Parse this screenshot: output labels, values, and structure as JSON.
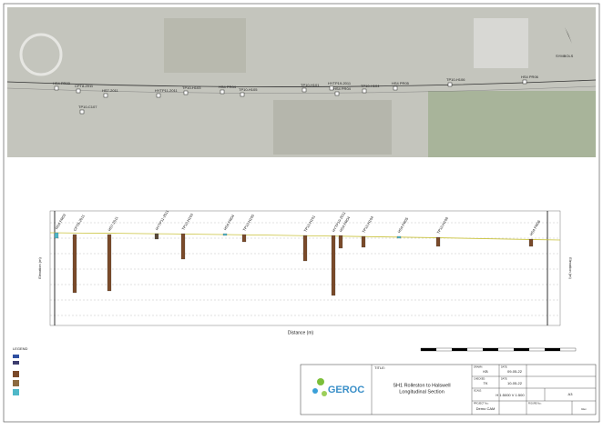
{
  "map": {
    "symbols_label": "SYMBOLS",
    "boreholes": [
      "HS4 PR03",
      "CPT8-2011",
      "HS7-2011",
      "TP10-C107",
      "HYTP11-2011",
      "TP10-H103",
      "HS4 PR04",
      "TP10-H105",
      "TP10-H101",
      "HYTP19-2011",
      "HS4 PR04",
      "TP10-H104",
      "HS4 PR05",
      "TP10-H106",
      "HS4 PR06"
    ]
  },
  "section": {
    "boreholes": [
      "HS4 PR03",
      "CPT8-2011",
      "HS7-2011",
      "HYTP11-2011",
      "TP10-H103",
      "HS4 PR04",
      "TP10-H105",
      "TP10-H101",
      "HYTP19-2011",
      "HS4 PR04",
      "TP10-H104",
      "HS4 PR05",
      "TP10-H106",
      "HS4 PR06"
    ],
    "x_axis_label": "Distance (m)",
    "y_axis_label": "Elevation (m)",
    "y2_axis_label": "Elevation (m)"
  },
  "legend": {
    "title": "LEGEND"
  },
  "title_block": {
    "logo": "GEROC",
    "title_label": "TITLE:",
    "title_line1": "SH1 Rolleston to Halswell",
    "title_line2": "Longitudinal Section",
    "drawn_label": "DRAWN:",
    "drawn": "KB",
    "date_label": "DATE:",
    "date": "09-05-22",
    "checked_label": "CHECKED:",
    "checked": "TK",
    "date2_label": "DATE:",
    "date2": "10-05-22",
    "scale_label": "SCALE:",
    "scale": "H 1:5000  V 1:500",
    "size": "A3",
    "project_label": "PROJECT No.:",
    "project": "Demo CAM",
    "figure_label": "FIGURE No.:",
    "rev": "Rev"
  }
}
